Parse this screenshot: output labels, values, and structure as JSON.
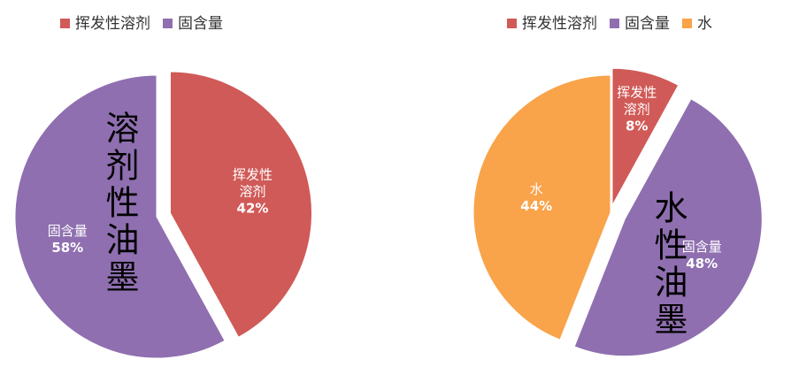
{
  "chart_data": [
    {
      "type": "pie",
      "categories": [
        "挥发性溶剂",
        "固含量"
      ],
      "values": [
        42,
        58
      ],
      "value_labels": [
        "42%",
        "58%"
      ],
      "colors": [
        "#d05a57",
        "#8f6fb0"
      ],
      "annotation": "溶剂性油墨"
    },
    {
      "type": "pie",
      "categories": [
        "挥发性溶剂",
        "固含量",
        "水"
      ],
      "values": [
        8,
        48,
        44
      ],
      "value_labels": [
        "8%",
        "48%",
        "44%"
      ],
      "colors": [
        "#d05a57",
        "#8f6fb0",
        "#f9a34a"
      ],
      "annotation": "水性油墨"
    }
  ]
}
